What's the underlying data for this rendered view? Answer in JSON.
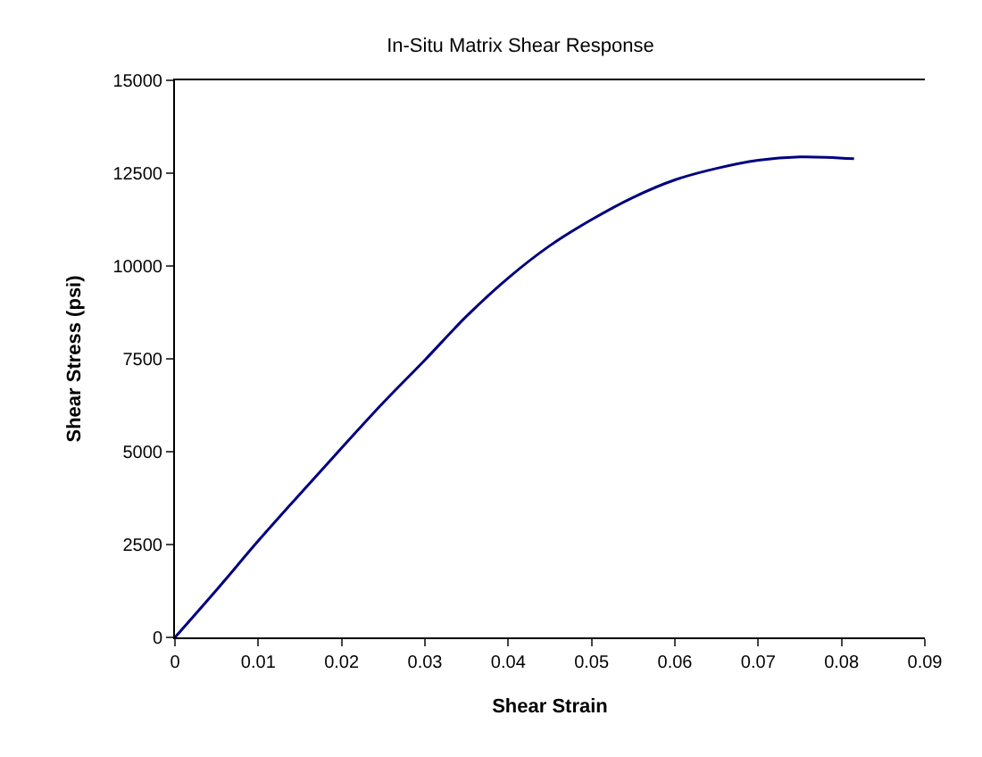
{
  "chart_data": {
    "type": "line",
    "title": "In-Situ Matrix Shear Response",
    "xlabel": "Shear Strain",
    "ylabel": "Shear Stress (psi)",
    "x": [
      0,
      0.005,
      0.01,
      0.015,
      0.02,
      0.025,
      0.03,
      0.035,
      0.04,
      0.045,
      0.05,
      0.055,
      0.06,
      0.065,
      0.07,
      0.075,
      0.0815
    ],
    "series": [
      {
        "color": "#000080",
        "values": [
          0,
          1280,
          2600,
          3860,
          5100,
          6320,
          7470,
          8650,
          9680,
          10550,
          11250,
          11850,
          12320,
          12630,
          12850,
          12940,
          12890
        ]
      }
    ],
    "xlim": [
      0,
      0.09
    ],
    "xticks": [
      0,
      0.01,
      0.02,
      0.03,
      0.04,
      0.05,
      0.06,
      0.07,
      0.08,
      0.09
    ],
    "ylim": [
      0,
      15000
    ],
    "yticks": [
      0,
      2500,
      5000,
      7500,
      10000,
      12500,
      15000
    ],
    "grid": false,
    "marker": "none",
    "line_style": "solid"
  }
}
